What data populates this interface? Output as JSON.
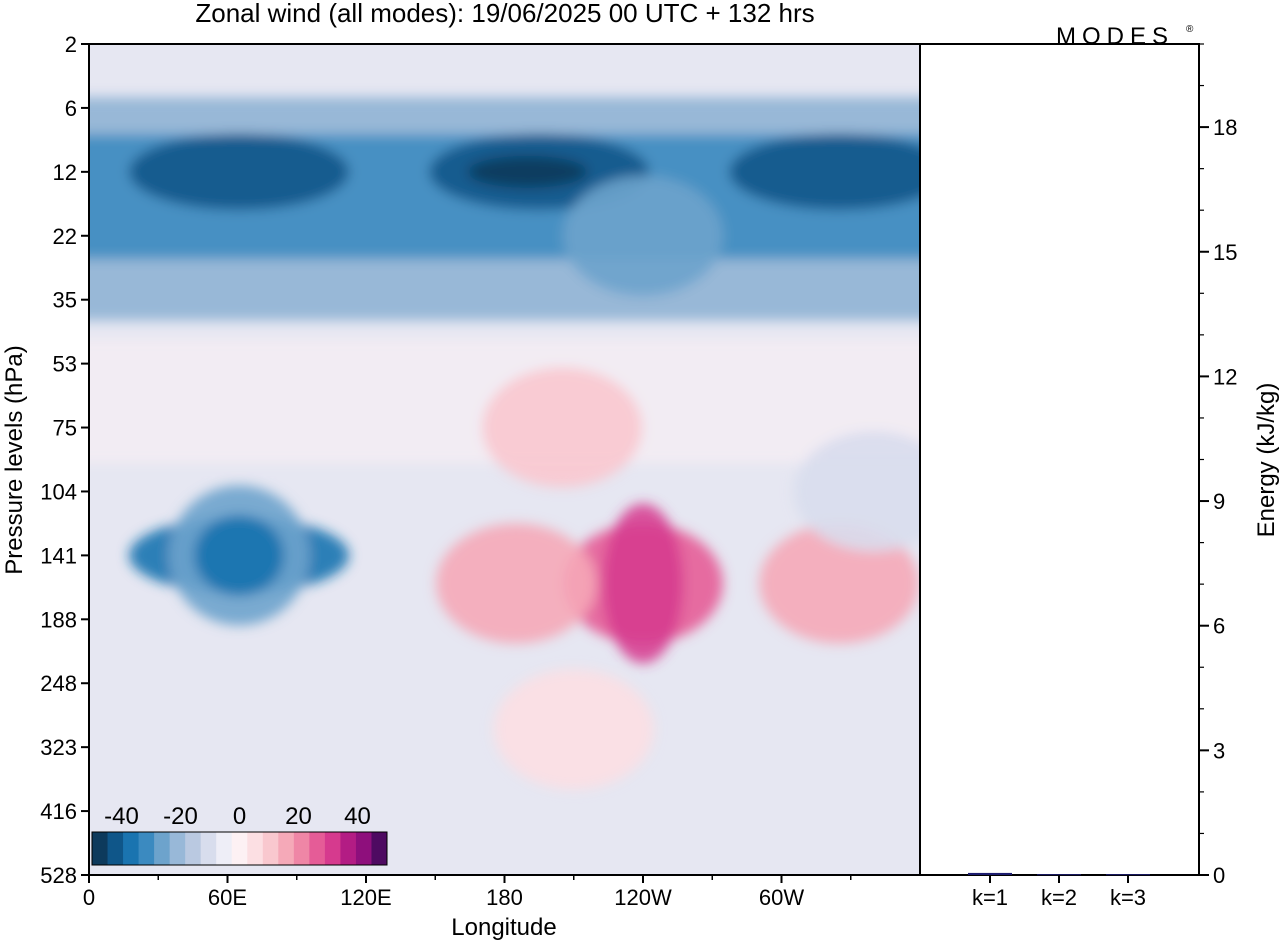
{
  "chart_data": [
    {
      "type": "heatmap",
      "title": "Zonal wind (all modes):  19/06/2025  00 UTC  + 132 hrs",
      "brand": "MODES",
      "brand_mark": "®",
      "xlabel": "Longitude",
      "ylabel": "Pressure levels (hPa)",
      "x_ticks": [
        "0",
        "60E",
        "120E",
        "180",
        "120W",
        "60W"
      ],
      "x_tick_degrees": [
        0,
        60,
        120,
        180,
        240,
        300
      ],
      "xlim": [
        0,
        360
      ],
      "y_ticks": [
        "2",
        "6",
        "12",
        "22",
        "35",
        "53",
        "75",
        "104",
        "141",
        "188",
        "248",
        "323",
        "416",
        "528"
      ],
      "colorbar": {
        "tick_labels": [
          "-40",
          "-20",
          "0",
          "20",
          "40"
        ],
        "range": [
          -50,
          50
        ],
        "step": 5,
        "colors": [
          "#0d3a5c",
          "#0f5689",
          "#1a74b0",
          "#3b8ac0",
          "#6da3cc",
          "#98b8d8",
          "#bac9e1",
          "#d8dded",
          "#eeeef7",
          "#fdf1f4",
          "#fcdfe3",
          "#f9c8cf",
          "#f5a9b8",
          "#ef86a6",
          "#e55c97",
          "#d63a8e",
          "#b31c84",
          "#8e0f7c",
          "#4e0a61"
        ]
      },
      "field_features": [
        {
          "lon": 65,
          "level": 12,
          "value": -44
        },
        {
          "lon": 195,
          "level": 12,
          "value": -45
        },
        {
          "lon": 325,
          "level": 12,
          "value": -43
        },
        {
          "lon": 240,
          "level": 22,
          "value": -30
        },
        {
          "lon": 65,
          "level": 141,
          "value": -38
        },
        {
          "lon": 240,
          "level": 160,
          "value": 22
        },
        {
          "lon": 185,
          "level": 160,
          "value": 12
        },
        {
          "lon": 325,
          "level": 160,
          "value": 14
        },
        {
          "lon": 205,
          "level": 75,
          "value": 8
        },
        {
          "lon": 340,
          "level": 104,
          "value": -12
        },
        {
          "lon": 210,
          "level": 300,
          "value": 4
        }
      ]
    },
    {
      "type": "bar",
      "ylabel": "Energy (kJ/kg)",
      "categories": [
        "k=1",
        "k=2",
        "k=3"
      ],
      "values": [
        0.05,
        0.02,
        0.02
      ],
      "ylim": [
        0,
        20
      ],
      "y_ticks": [
        "0",
        "3",
        "6",
        "9",
        "12",
        "15",
        "18"
      ],
      "bar_color": "#1c1c6e"
    }
  ]
}
